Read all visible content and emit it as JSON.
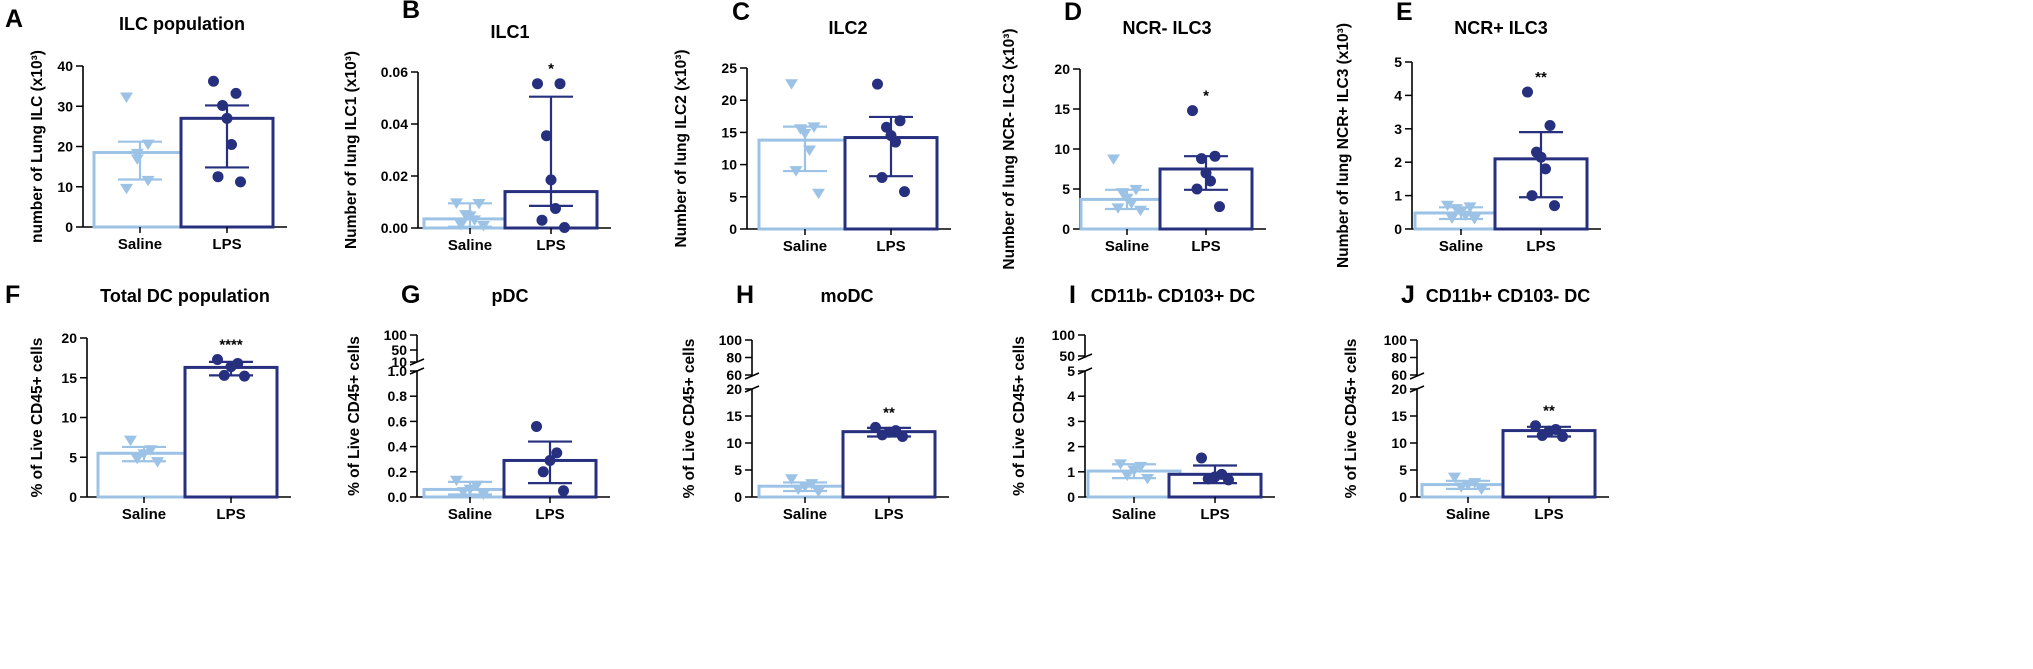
{
  "figure": {
    "background": "#ffffff"
  },
  "colors": {
    "saline": "#9cc3e6",
    "lps": "#26307e",
    "axis": "#000000"
  },
  "chart_data": [
    {
      "id": "A",
      "letter": "A",
      "type": "bar",
      "title": "ILC population",
      "ylabel": "number of Lung ILC (x10³)",
      "categories": [
        "Saline",
        "LPS"
      ],
      "ylim": [
        0,
        40
      ],
      "ticks": [
        0,
        10,
        20,
        30,
        40
      ],
      "tick_labels": [
        "0",
        "10",
        "20",
        "30",
        "40"
      ],
      "series": [
        {
          "name": "Saline",
          "value": 18.5,
          "err": [
            11.8,
            21.2
          ],
          "points": [
            32.2,
            20.5,
            18.2,
            16.8,
            11.5,
            9.5
          ]
        },
        {
          "name": "LPS",
          "value": 27,
          "err": [
            14.8,
            30.2
          ],
          "points": [
            36.2,
            33.2,
            30.2,
            27.0,
            20.5,
            12.5,
            11.2
          ]
        }
      ],
      "significance": ""
    },
    {
      "id": "B",
      "letter": "B",
      "type": "bar",
      "title": "ILC1",
      "ylabel": "Number of lung ILC1 (x10³)",
      "categories": [
        "Saline",
        "LPS"
      ],
      "ylim": [
        0,
        0.06
      ],
      "ticks": [
        0,
        0.02,
        0.04,
        0.06
      ],
      "tick_labels": [
        "0.00",
        "0.02",
        "0.04",
        "0.06"
      ],
      "series": [
        {
          "name": "Saline",
          "value": 0.0035,
          "err": [
            0.0005,
            0.0095
          ],
          "points": [
            0.0095,
            0.0093,
            0.005,
            0.0045,
            0.003,
            0.0012,
            0.0008
          ]
        },
        {
          "name": "LPS",
          "value": 0.014,
          "err": [
            0.0085,
            0.0505
          ],
          "points": [
            0.0555,
            0.0555,
            0.0355,
            0.0185,
            0.0075,
            0.003,
            0.0002
          ]
        }
      ],
      "significance": "*"
    },
    {
      "id": "C",
      "letter": "C",
      "type": "bar",
      "title": "ILC2",
      "ylabel": "Number of lung ILC2 (x10³)",
      "categories": [
        "Saline",
        "LPS"
      ],
      "ylim": [
        0,
        25
      ],
      "ticks": [
        0,
        5,
        10,
        15,
        20,
        25
      ],
      "tick_labels": [
        "0",
        "5",
        "10",
        "15",
        "20",
        "25"
      ],
      "series": [
        {
          "name": "Saline",
          "value": 13.8,
          "err": [
            9.0,
            15.9
          ],
          "points": [
            22.5,
            15.8,
            15.5,
            14.8,
            12.2,
            9.0,
            5.5
          ]
        },
        {
          "name": "LPS",
          "value": 14.2,
          "err": [
            8.2,
            17.4
          ],
          "points": [
            22.5,
            16.8,
            15.8,
            14.5,
            13.5,
            8.0,
            5.8
          ]
        }
      ],
      "significance": ""
    },
    {
      "id": "D",
      "letter": "D",
      "type": "bar",
      "title": "NCR- ILC3",
      "ylabel": "Number of lung NCR- ILC3 (x10³)",
      "categories": [
        "Saline",
        "LPS"
      ],
      "ylim": [
        0,
        20
      ],
      "ticks": [
        0,
        5,
        10,
        15,
        20
      ],
      "tick_labels": [
        "0",
        "5",
        "10",
        "15",
        "20"
      ],
      "series": [
        {
          "name": "Saline",
          "value": 3.7,
          "err": [
            2.5,
            4.9
          ],
          "points": [
            8.7,
            4.9,
            4.5,
            3.8,
            3.2,
            2.6,
            2.3
          ]
        },
        {
          "name": "LPS",
          "value": 7.5,
          "err": [
            4.9,
            9.1
          ],
          "points": [
            14.8,
            9.1,
            8.8,
            7.0,
            6.0,
            5.0,
            2.8
          ]
        }
      ],
      "significance": "*"
    },
    {
      "id": "E",
      "letter": "E",
      "type": "bar",
      "title": "NCR+ ILC3",
      "ylabel": "Number of lung NCR+ ILC3 (x10³)",
      "categories": [
        "Saline",
        "LPS"
      ],
      "ylim": [
        0,
        5
      ],
      "ticks": [
        0,
        1,
        2,
        3,
        4,
        5
      ],
      "tick_labels": [
        "0",
        "1",
        "2",
        "3",
        "4",
        "5"
      ],
      "series": [
        {
          "name": "Saline",
          "value": 0.48,
          "err": [
            0.3,
            0.65
          ],
          "points": [
            0.7,
            0.65,
            0.6,
            0.5,
            0.4,
            0.32,
            0.3
          ]
        },
        {
          "name": "LPS",
          "value": 2.1,
          "err": [
            0.95,
            2.9
          ],
          "points": [
            4.1,
            3.1,
            2.3,
            2.15,
            1.8,
            1.0,
            0.7
          ]
        }
      ],
      "significance": "**"
    },
    {
      "id": "F",
      "letter": "F",
      "type": "bar",
      "title": "Total DC population",
      "ylabel": "% of Live CD45+ cells",
      "categories": [
        "Saline",
        "LPS"
      ],
      "ylim": [
        0,
        20
      ],
      "ticks": [
        0,
        5,
        10,
        15,
        20
      ],
      "tick_labels": [
        "0",
        "5",
        "10",
        "15",
        "20"
      ],
      "series": [
        {
          "name": "Saline",
          "value": 5.5,
          "err": [
            4.5,
            6.3
          ],
          "points": [
            7.1,
            5.9,
            5.4,
            4.8,
            4.4
          ]
        },
        {
          "name": "LPS",
          "value": 16.3,
          "err": [
            15.3,
            17.0
          ],
          "points": [
            17.3,
            16.8,
            16.4,
            15.3,
            15.2
          ]
        }
      ],
      "significance": "****"
    },
    {
      "id": "G",
      "letter": "G",
      "type": "bar",
      "title": "pDC",
      "ylabel": "% of Live CD45+ cells",
      "categories": [
        "Saline",
        "LPS"
      ],
      "ylim": [
        0,
        1.0
      ],
      "ticks": [
        0,
        0.2,
        0.4,
        0.6,
        0.8,
        1.0
      ],
      "tick_labels": [
        "0.0",
        "0.2",
        "0.4",
        "0.6",
        "0.8",
        "1.0"
      ],
      "broken_axis": {
        "ticks": [
          10,
          50,
          100
        ],
        "tick_labels": [
          "10",
          "50",
          "100"
        ]
      },
      "series": [
        {
          "name": "Saline",
          "value": 0.06,
          "err": [
            0.02,
            0.12
          ],
          "points": [
            0.13,
            0.09,
            0.06,
            0.04,
            0.02
          ]
        },
        {
          "name": "LPS",
          "value": 0.29,
          "err": [
            0.11,
            0.44
          ],
          "points": [
            0.56,
            0.35,
            0.29,
            0.2,
            0.05
          ]
        }
      ],
      "significance": ""
    },
    {
      "id": "H",
      "letter": "H",
      "type": "bar",
      "title": "moDC",
      "ylabel": "% of Live CD45+ cells",
      "categories": [
        "Saline",
        "LPS"
      ],
      "ylim": [
        0,
        20
      ],
      "ticks": [
        0,
        5,
        10,
        15,
        20
      ],
      "tick_labels": [
        "0",
        "5",
        "10",
        "15",
        "20"
      ],
      "broken_axis": {
        "ticks": [
          60,
          80,
          100
        ],
        "tick_labels": [
          "60",
          "80",
          "100"
        ]
      },
      "series": [
        {
          "name": "Saline",
          "value": 2.0,
          "err": [
            1.1,
            2.7
          ],
          "points": [
            3.3,
            2.4,
            1.9,
            1.4,
            1.0
          ]
        },
        {
          "name": "LPS",
          "value": 12.1,
          "err": [
            11.2,
            12.8
          ],
          "points": [
            12.9,
            12.3,
            12.0,
            11.5,
            11.2
          ]
        }
      ],
      "significance": "**"
    },
    {
      "id": "I",
      "letter": "I",
      "type": "bar",
      "title": "CD11b- CD103+ DC",
      "ylabel": "% of Live CD45+ cells",
      "categories": [
        "Saline",
        "LPS"
      ],
      "ylim": [
        0,
        5
      ],
      "ticks": [
        0,
        1,
        2,
        3,
        4,
        5
      ],
      "tick_labels": [
        "0",
        "1",
        "2",
        "3",
        "4",
        "5"
      ],
      "broken_axis": {
        "ticks": [
          50,
          100
        ],
        "tick_labels": [
          "50",
          "100"
        ]
      },
      "series": [
        {
          "name": "Saline",
          "value": 1.03,
          "err": [
            0.75,
            1.3
          ],
          "points": [
            1.3,
            1.2,
            1.05,
            0.85,
            0.72
          ]
        },
        {
          "name": "LPS",
          "value": 0.9,
          "err": [
            0.55,
            1.25
          ],
          "points": [
            1.55,
            0.9,
            0.8,
            0.72,
            0.68
          ]
        }
      ],
      "significance": ""
    },
    {
      "id": "J",
      "letter": "J",
      "type": "bar",
      "title": "CD11b+ CD103- DC",
      "ylabel": "% of Live CD45+ cells",
      "categories": [
        "Saline",
        "LPS"
      ],
      "ylim": [
        0,
        20
      ],
      "ticks": [
        0,
        5,
        10,
        15,
        20
      ],
      "tick_labels": [
        "0",
        "5",
        "10",
        "15",
        "20"
      ],
      "broken_axis": {
        "ticks": [
          60,
          80,
          100
        ],
        "tick_labels": [
          "60",
          "80",
          "100"
        ]
      },
      "series": [
        {
          "name": "Saline",
          "value": 2.3,
          "err": [
            1.5,
            3.0
          ],
          "points": [
            3.6,
            2.6,
            2.2,
            1.8,
            1.4
          ]
        },
        {
          "name": "LPS",
          "value": 12.3,
          "err": [
            11.2,
            13.0
          ],
          "points": [
            13.2,
            12.5,
            12.2,
            11.4,
            11.2
          ]
        }
      ],
      "significance": "**"
    }
  ]
}
